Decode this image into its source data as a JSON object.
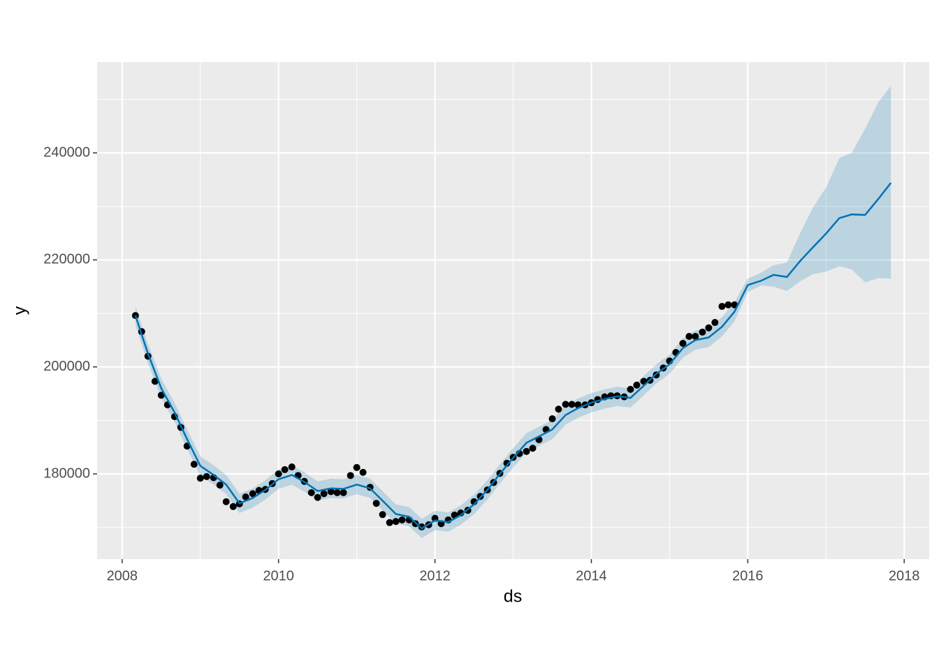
{
  "chart_data": {
    "type": "line",
    "x_label": "ds",
    "y_label": "y",
    "xlim": [
      2007.68,
      2018.32
    ],
    "ylim": [
      164090,
      256960
    ],
    "xticks": [
      2008,
      2010,
      2012,
      2014,
      2016,
      2018
    ],
    "yticks": [
      180000,
      200000,
      220000,
      240000
    ],
    "grid": true,
    "points": {
      "color": "#000000",
      "x": [
        2008.17,
        2008.25,
        2008.33,
        2008.42,
        2008.5,
        2008.58,
        2008.67,
        2008.75,
        2008.83,
        2008.92,
        2009.0,
        2009.08,
        2009.17,
        2009.25,
        2009.33,
        2009.42,
        2009.5,
        2009.58,
        2009.67,
        2009.75,
        2009.83,
        2009.92,
        2010.0,
        2010.08,
        2010.17,
        2010.25,
        2010.33,
        2010.42,
        2010.5,
        2010.58,
        2010.67,
        2010.75,
        2010.83,
        2010.92,
        2011.0,
        2011.08,
        2011.17,
        2011.25,
        2011.33,
        2011.42,
        2011.5,
        2011.58,
        2011.67,
        2011.75,
        2011.83,
        2011.92,
        2012.0,
        2012.08,
        2012.17,
        2012.25,
        2012.33,
        2012.42,
        2012.5,
        2012.58,
        2012.67,
        2012.75,
        2012.83,
        2012.92,
        2013.0,
        2013.08,
        2013.17,
        2013.25,
        2013.33,
        2013.42,
        2013.5,
        2013.58,
        2013.67,
        2013.75,
        2013.83,
        2013.92,
        2014.0,
        2014.08,
        2014.17,
        2014.25,
        2014.33,
        2014.42,
        2014.5,
        2014.58,
        2014.67,
        2014.75,
        2014.83,
        2014.92,
        2015.0,
        2015.08,
        2015.17,
        2015.25,
        2015.33,
        2015.42,
        2015.5,
        2015.58,
        2015.67,
        2015.75,
        2015.83
      ],
      "values": [
        209600,
        206600,
        202000,
        197300,
        194700,
        192900,
        190700,
        188700,
        185200,
        181800,
        179200,
        179500,
        179300,
        177900,
        174800,
        173900,
        174400,
        175700,
        176300,
        176900,
        177100,
        178200,
        180000,
        180800,
        181300,
        179700,
        178600,
        176500,
        175600,
        176300,
        176700,
        176500,
        176500,
        179700,
        181200,
        180300,
        177500,
        174500,
        172400,
        170900,
        171100,
        171400,
        171400,
        170700,
        170100,
        170500,
        171700,
        170700,
        171400,
        172300,
        172700,
        173200,
        174800,
        175800,
        177000,
        178400,
        180100,
        182000,
        183100,
        183800,
        184200,
        184800,
        186400,
        188300,
        190300,
        192100,
        193000,
        193000,
        192900,
        192900,
        193300,
        193900,
        194400,
        194600,
        194600,
        194400,
        195800,
        196600,
        197300,
        197500,
        198500,
        199800,
        201100,
        202700,
        204400,
        205700,
        205700,
        206500,
        207300,
        208300,
        211300,
        211600,
        211600
      ]
    },
    "forecast": {
      "color": "#0072B2",
      "band_color": "#0072B2",
      "x": [
        2008.17,
        2008.33,
        2008.5,
        2008.67,
        2008.83,
        2009.0,
        2009.17,
        2009.33,
        2009.5,
        2009.67,
        2009.83,
        2010.0,
        2010.17,
        2010.33,
        2010.5,
        2010.67,
        2010.83,
        2011.0,
        2011.17,
        2011.33,
        2011.5,
        2011.67,
        2011.83,
        2012.0,
        2012.17,
        2012.33,
        2012.5,
        2012.67,
        2012.83,
        2013.0,
        2013.17,
        2013.33,
        2013.5,
        2013.67,
        2013.83,
        2014.0,
        2014.17,
        2014.33,
        2014.5,
        2014.67,
        2014.83,
        2015.0,
        2015.17,
        2015.33,
        2015.5,
        2015.67,
        2015.83,
        2016.0,
        2016.17,
        2016.33,
        2016.5,
        2016.67,
        2016.83,
        2017.0,
        2017.17,
        2017.33,
        2017.5,
        2017.67,
        2017.83
      ],
      "values": [
        209600,
        202500,
        196000,
        191500,
        186500,
        181500,
        179800,
        178000,
        174500,
        175500,
        177000,
        179000,
        179800,
        178500,
        176800,
        177300,
        177200,
        178000,
        177300,
        175000,
        172500,
        172000,
        169800,
        171300,
        171000,
        172300,
        174300,
        177000,
        180000,
        183000,
        185800,
        187000,
        188300,
        191000,
        192300,
        193300,
        194000,
        194500,
        194200,
        196500,
        198700,
        200500,
        203500,
        205000,
        205500,
        207500,
        210300,
        215300,
        216100,
        217200,
        216800,
        219800,
        222300,
        224900,
        227800,
        228500,
        228400,
        231400,
        234400
      ],
      "lower": [
        207800,
        200700,
        194200,
        189700,
        184700,
        179700,
        178000,
        176200,
        172700,
        173700,
        175200,
        177200,
        178000,
        176700,
        175000,
        175500,
        175400,
        176200,
        175500,
        173200,
        170700,
        170200,
        168000,
        169500,
        169200,
        170500,
        172500,
        175200,
        178200,
        181200,
        184000,
        185200,
        186500,
        189200,
        190500,
        191500,
        192200,
        192700,
        192400,
        194700,
        196900,
        198700,
        201700,
        203200,
        203700,
        205700,
        208500,
        214000,
        215200,
        215000,
        214200,
        216000,
        217300,
        217800,
        218800,
        218200,
        215800,
        216600,
        216500
      ],
      "upper": [
        211400,
        204300,
        197800,
        193300,
        188300,
        183300,
        181600,
        179800,
        176300,
        177300,
        178800,
        180800,
        181600,
        180300,
        178600,
        179100,
        179000,
        179800,
        179100,
        176800,
        174300,
        173800,
        171600,
        173100,
        172800,
        174100,
        176100,
        178800,
        181800,
        184800,
        187600,
        188800,
        190100,
        192800,
        194100,
        195100,
        195800,
        196300,
        196000,
        198300,
        200500,
        202300,
        205300,
        206800,
        207300,
        209300,
        212100,
        216500,
        217600,
        219000,
        219500,
        225000,
        229700,
        233500,
        239000,
        240000,
        244500,
        249500,
        252500
      ]
    }
  }
}
